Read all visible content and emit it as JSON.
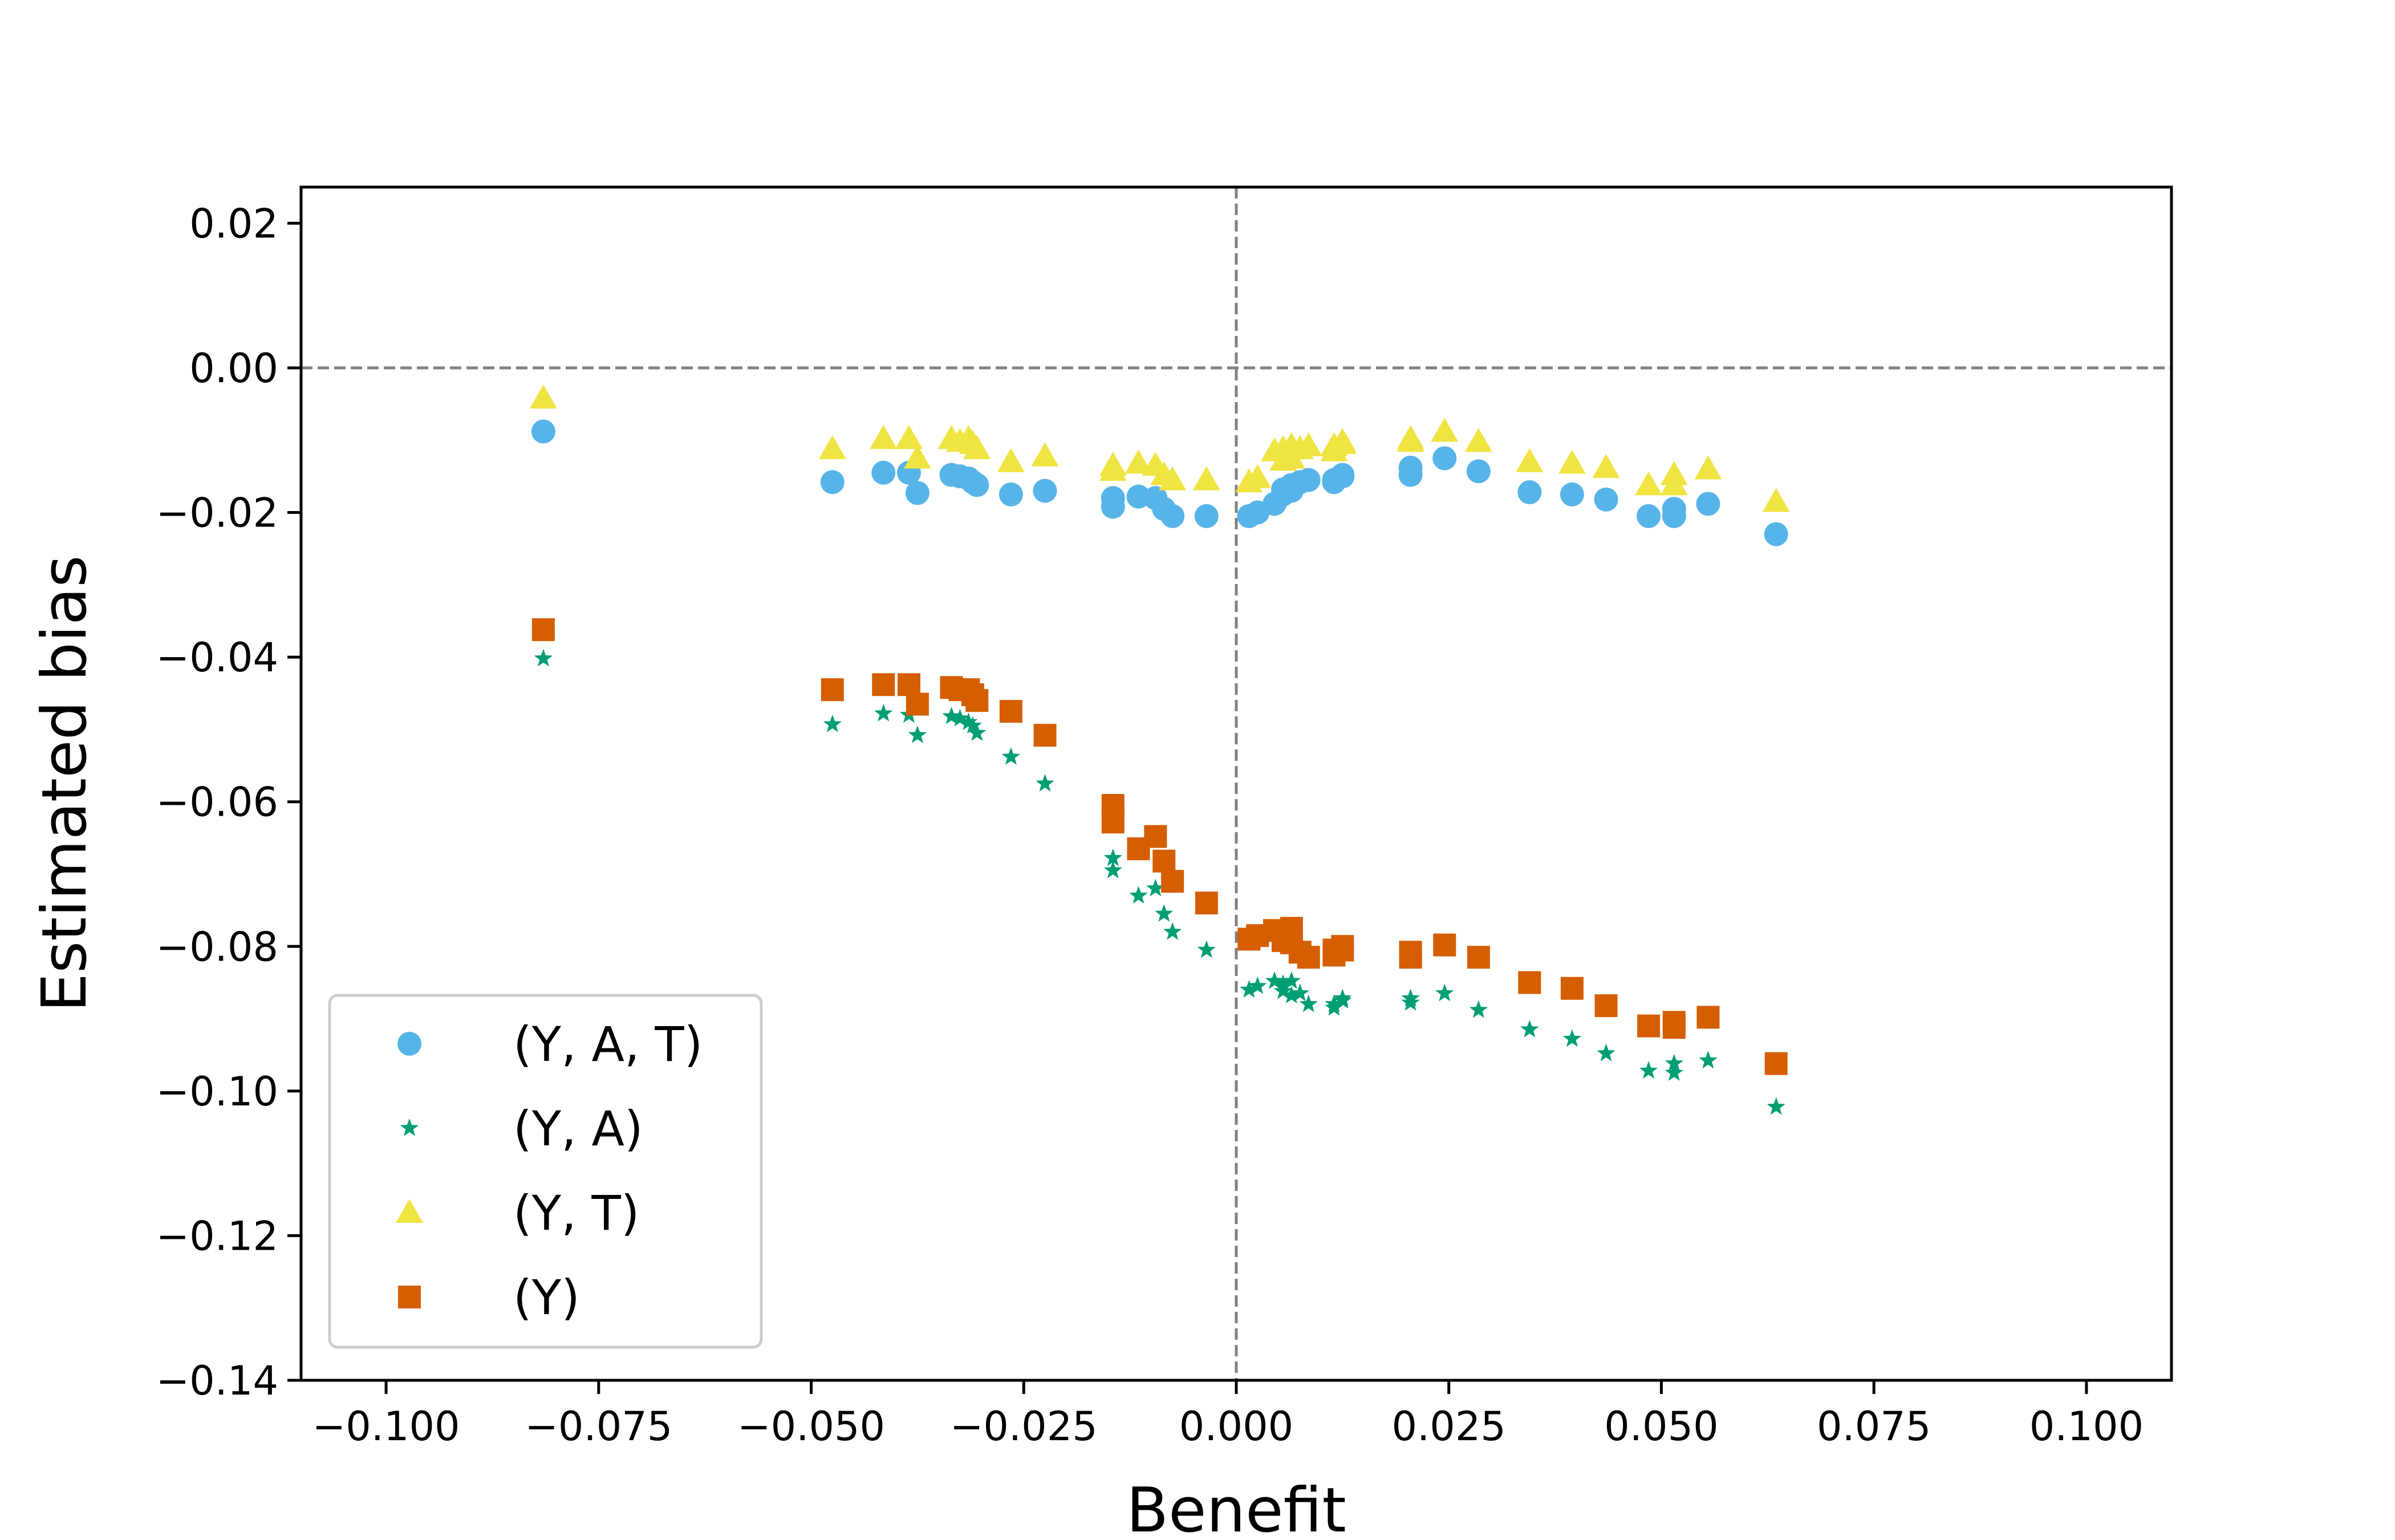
{
  "chart_data": {
    "type": "scatter",
    "title": "",
    "xlabel": "Benefit",
    "ylabel": "Estimated bias",
    "xlim": [
      -0.11,
      0.11
    ],
    "ylim": [
      -0.14,
      0.025
    ],
    "xticks": [
      -0.1,
      -0.075,
      -0.05,
      -0.025,
      0.0,
      0.025,
      0.05,
      0.075,
      0.1
    ],
    "xtick_labels": [
      "−0.100",
      "−0.075",
      "−0.050",
      "−0.025",
      "0.000",
      "0.025",
      "0.050",
      "0.075",
      "0.100"
    ],
    "yticks": [
      0.02,
      0.0,
      -0.02,
      -0.04,
      -0.06,
      -0.08,
      -0.1,
      -0.12,
      -0.14
    ],
    "ytick_labels": [
      "0.02",
      "0.00",
      "−0.02",
      "−0.04",
      "−0.06",
      "−0.08",
      "−0.10",
      "−0.12",
      "−0.14"
    ],
    "reference_lines": [
      {
        "orientation": "horizontal",
        "value": 0.0,
        "style": "dashed",
        "color": "#808080"
      },
      {
        "orientation": "vertical",
        "value": 0.0,
        "style": "dashed",
        "color": "#808080"
      }
    ],
    "grid": false,
    "legend_position": "lower-left",
    "series": [
      {
        "name": "(Y, A, T)",
        "marker": "circle",
        "color": "#56B4E9",
        "x": [
          -0.0815,
          -0.0475,
          -0.0415,
          -0.0385,
          -0.0375,
          -0.0335,
          -0.0325,
          -0.0315,
          -0.031,
          -0.0305,
          -0.0265,
          -0.0225,
          -0.0145,
          -0.0145,
          -0.0115,
          -0.0095,
          -0.0085,
          -0.0075,
          -0.0035,
          0.0015,
          0.0025,
          0.0045,
          0.0055,
          0.0055,
          0.0065,
          0.0065,
          0.0075,
          0.0085,
          0.0115,
          0.0115,
          0.0125,
          0.0125,
          0.0205,
          0.0205,
          0.0245,
          0.0285,
          0.0345,
          0.0395,
          0.0435,
          0.0485,
          0.0515,
          0.0515,
          0.0555,
          0.0635
        ],
        "y": [
          -0.0088,
          -0.0158,
          -0.0145,
          -0.0145,
          -0.0173,
          -0.0148,
          -0.015,
          -0.0153,
          -0.0158,
          -0.0162,
          -0.0175,
          -0.017,
          -0.0192,
          -0.018,
          -0.0178,
          -0.018,
          -0.0195,
          -0.0205,
          -0.0205,
          -0.0205,
          -0.02,
          -0.0188,
          -0.0175,
          -0.0168,
          -0.017,
          -0.0162,
          -0.0158,
          -0.0155,
          -0.0158,
          -0.0155,
          -0.015,
          -0.0148,
          -0.0138,
          -0.0148,
          -0.0125,
          -0.0143,
          -0.0172,
          -0.0175,
          -0.0182,
          -0.0205,
          -0.0195,
          -0.0205,
          -0.0188,
          -0.023
        ]
      },
      {
        "name": "(Y, A)",
        "marker": "star",
        "color": "#009E73",
        "x": [
          -0.0815,
          -0.0475,
          -0.0415,
          -0.0385,
          -0.0375,
          -0.0335,
          -0.0325,
          -0.0315,
          -0.031,
          -0.0305,
          -0.0265,
          -0.0225,
          -0.0145,
          -0.0145,
          -0.0115,
          -0.0095,
          -0.0085,
          -0.0075,
          -0.0035,
          0.0015,
          0.0025,
          0.0045,
          0.0055,
          0.0055,
          0.0065,
          0.0065,
          0.0075,
          0.0085,
          0.0115,
          0.0115,
          0.0125,
          0.0125,
          0.0205,
          0.0205,
          0.0245,
          0.0285,
          0.0345,
          0.0395,
          0.0435,
          0.0485,
          0.0515,
          0.0515,
          0.0555,
          0.0635
        ],
        "y": [
          -0.0402,
          -0.0493,
          -0.0478,
          -0.048,
          -0.0508,
          -0.0482,
          -0.0485,
          -0.049,
          -0.0495,
          -0.0505,
          -0.0538,
          -0.0575,
          -0.0678,
          -0.0695,
          -0.073,
          -0.072,
          -0.0755,
          -0.078,
          -0.0805,
          -0.086,
          -0.0855,
          -0.0848,
          -0.0862,
          -0.0852,
          -0.0868,
          -0.0848,
          -0.0865,
          -0.088,
          -0.088,
          -0.0885,
          -0.0875,
          -0.0872,
          -0.0878,
          -0.0872,
          -0.0865,
          -0.0888,
          -0.0915,
          -0.0928,
          -0.0948,
          -0.0972,
          -0.0962,
          -0.0975,
          -0.0958,
          -0.1022
        ]
      },
      {
        "name": "(Y, T)",
        "marker": "triangle",
        "color": "#F0E442",
        "x": [
          -0.0815,
          -0.0475,
          -0.0415,
          -0.0385,
          -0.0375,
          -0.0335,
          -0.0325,
          -0.0315,
          -0.031,
          -0.0305,
          -0.0265,
          -0.0225,
          -0.0145,
          -0.0145,
          -0.0115,
          -0.0095,
          -0.0085,
          -0.0075,
          -0.0035,
          0.0015,
          0.0025,
          0.0045,
          0.0055,
          0.0055,
          0.0065,
          0.0065,
          0.0075,
          0.0085,
          0.0115,
          0.0115,
          0.0125,
          0.0125,
          0.0205,
          0.0205,
          0.0245,
          0.0285,
          0.0345,
          0.0395,
          0.0435,
          0.0485,
          0.0515,
          0.0515,
          0.0555,
          0.0635
        ],
        "y": [
          -0.0042,
          -0.0112,
          -0.0098,
          -0.0098,
          -0.0125,
          -0.0098,
          -0.0102,
          -0.0098,
          -0.0105,
          -0.0112,
          -0.013,
          -0.0122,
          -0.0135,
          -0.0142,
          -0.0132,
          -0.0135,
          -0.0148,
          -0.0155,
          -0.0155,
          -0.0158,
          -0.0152,
          -0.0115,
          -0.0112,
          -0.0128,
          -0.0108,
          -0.0125,
          -0.0112,
          -0.0108,
          -0.0108,
          -0.0115,
          -0.0105,
          -0.0102,
          -0.0098,
          -0.0102,
          -0.0088,
          -0.0102,
          -0.013,
          -0.0132,
          -0.0138,
          -0.0162,
          -0.0148,
          -0.0162,
          -0.014,
          -0.0185
        ]
      },
      {
        "name": "(Y)",
        "marker": "square",
        "color": "#D55E00",
        "x": [
          -0.0815,
          -0.0475,
          -0.0415,
          -0.0385,
          -0.0375,
          -0.0335,
          -0.0325,
          -0.0315,
          -0.031,
          -0.0305,
          -0.0265,
          -0.0225,
          -0.0145,
          -0.0145,
          -0.0115,
          -0.0095,
          -0.0085,
          -0.0075,
          -0.0035,
          0.0015,
          0.0025,
          0.0045,
          0.0055,
          0.0055,
          0.0065,
          0.0065,
          0.0075,
          0.0085,
          0.0115,
          0.0115,
          0.0125,
          0.0125,
          0.0205,
          0.0205,
          0.0245,
          0.0285,
          0.0345,
          0.0395,
          0.0435,
          0.0485,
          0.0515,
          0.0515,
          0.0555,
          0.0635
        ],
        "y": [
          -0.0362,
          -0.0445,
          -0.0438,
          -0.0438,
          -0.0465,
          -0.0442,
          -0.0445,
          -0.0445,
          -0.0452,
          -0.046,
          -0.0475,
          -0.0508,
          -0.0605,
          -0.0628,
          -0.0665,
          -0.0648,
          -0.0682,
          -0.071,
          -0.074,
          -0.079,
          -0.0785,
          -0.0778,
          -0.0792,
          -0.0782,
          -0.0795,
          -0.0775,
          -0.0808,
          -0.0815,
          -0.0812,
          -0.0805,
          -0.08,
          -0.0805,
          -0.0808,
          -0.0815,
          -0.0798,
          -0.0815,
          -0.085,
          -0.0858,
          -0.0882,
          -0.091,
          -0.0905,
          -0.0912,
          -0.0898,
          -0.0962
        ]
      }
    ]
  }
}
